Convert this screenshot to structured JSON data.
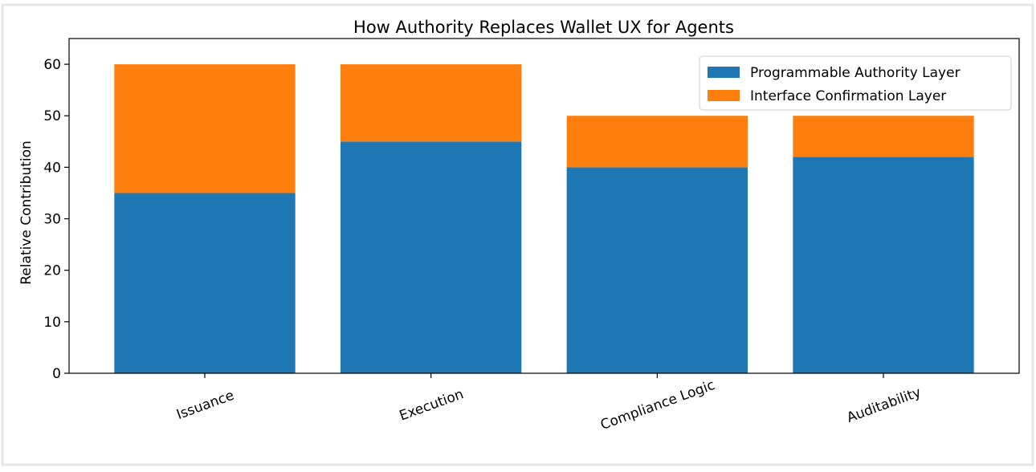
{
  "chart_data": {
    "type": "stacked-bar",
    "title": "How Authority Replaces Wallet UX for Agents",
    "y_label": "Relative Contribution",
    "categories": [
      "Issuance",
      "Execution",
      "Compliance Logic",
      "Auditability"
    ],
    "series": [
      {
        "name": "Programmable Authority Layer",
        "color": "#1f77b4",
        "values": [
          35,
          45,
          40,
          42
        ]
      },
      {
        "name": "Interface Confirmation Layer",
        "color": "#ff7f0e",
        "values": [
          25,
          15,
          10,
          8
        ]
      }
    ],
    "ylim": [
      0,
      65
    ],
    "yticks": [
      0,
      10,
      20,
      30,
      40,
      50,
      60
    ],
    "legend": "upper right"
  }
}
